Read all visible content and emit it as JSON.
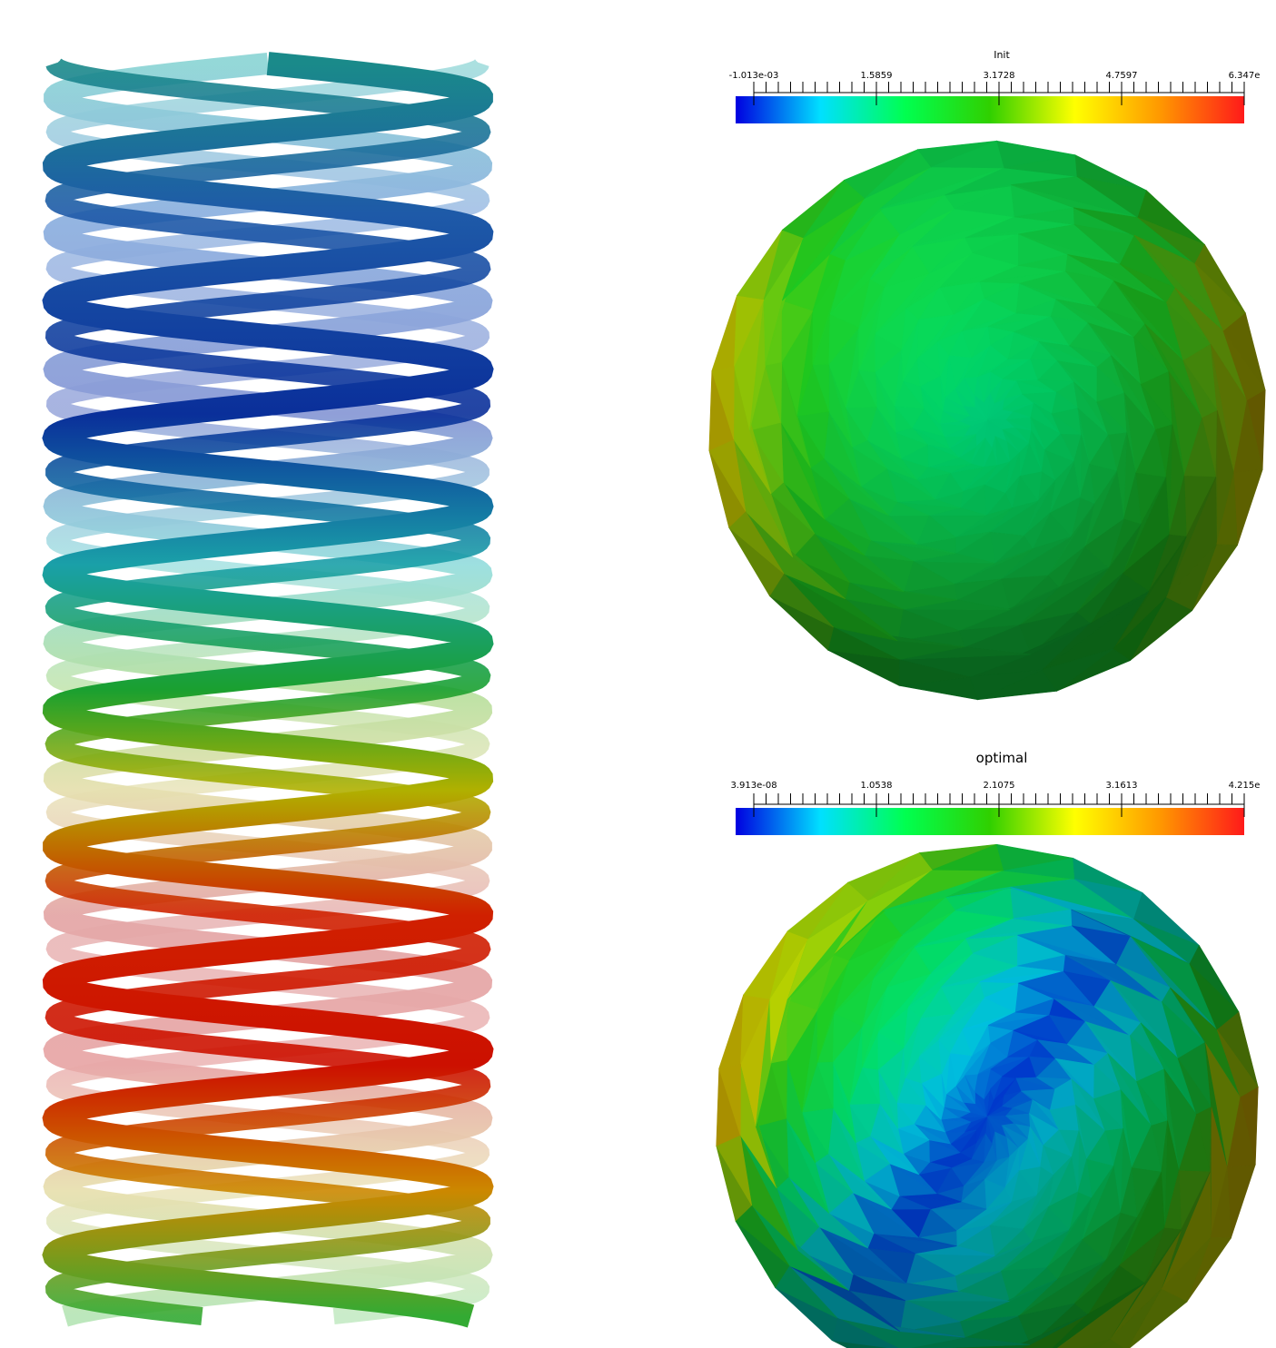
{
  "helix_view": {
    "colormap_stops": [
      "#0000ff",
      "#00e0ff",
      "#00ff66",
      "#22dd00",
      "#ffff00",
      "#ff9900",
      "#ff2200"
    ]
  },
  "init_view": {
    "colorbar": {
      "title": "Init",
      "tick_labels": [
        "-1.013e-03",
        "1.5859",
        "3.1728",
        "4.7597",
        "6.347e"
      ],
      "colors": [
        "#0000e0",
        "#00e0ff",
        "#00ff50",
        "#30d000",
        "#ffff00",
        "#ff9900",
        "#ff1a1a"
      ]
    }
  },
  "optimal_view": {
    "colorbar": {
      "title": "optimal",
      "tick_labels": [
        "3.913e-08",
        "1.0538",
        "2.1075",
        "3.1613",
        "4.215e"
      ],
      "colors": [
        "#0000e0",
        "#00e0ff",
        "#00ff50",
        "#30d000",
        "#ffff00",
        "#ff9900",
        "#ff1a1a"
      ]
    }
  }
}
